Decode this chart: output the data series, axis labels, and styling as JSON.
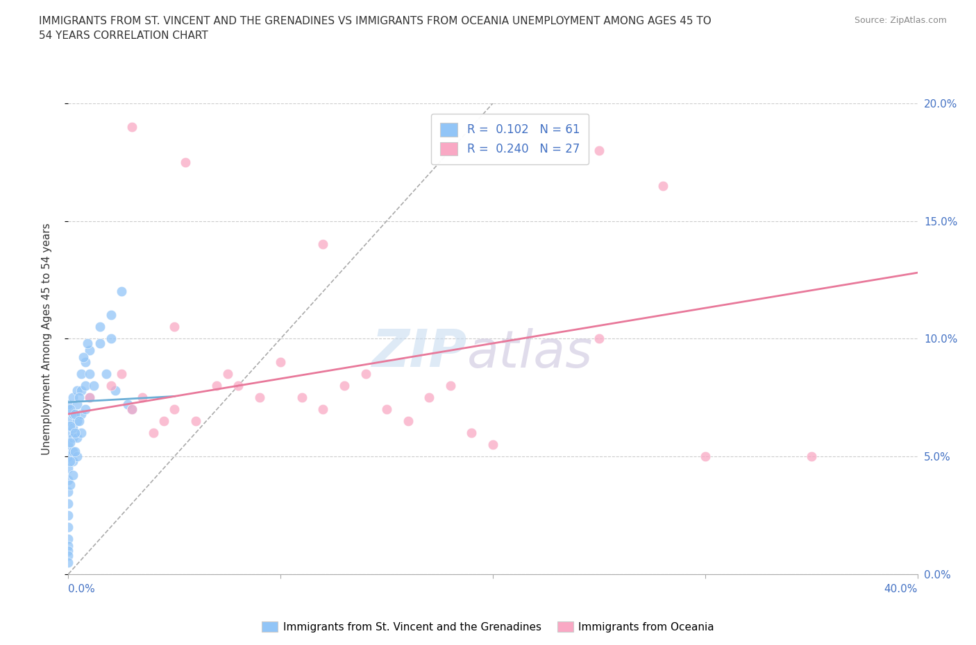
{
  "title": "IMMIGRANTS FROM ST. VINCENT AND THE GRENADINES VS IMMIGRANTS FROM OCEANIA UNEMPLOYMENT AMONG AGES 45 TO\n54 YEARS CORRELATION CHART",
  "source": "Source: ZipAtlas.com",
  "ylabel": "Unemployment Among Ages 45 to 54 years",
  "yticks": [
    "0.0%",
    "5.0%",
    "10.0%",
    "15.0%",
    "20.0%"
  ],
  "ytick_vals": [
    0.0,
    5.0,
    10.0,
    15.0,
    20.0
  ],
  "xrange": [
    0.0,
    40.0
  ],
  "yrange": [
    0.0,
    20.0
  ],
  "r_blue": 0.102,
  "n_blue": 61,
  "r_pink": 0.24,
  "n_pink": 27,
  "blue_color": "#92C5F7",
  "pink_color": "#F9A8C4",
  "trend_pink_color": "#E8789A",
  "trend_blue_color": "#6BAED6",
  "legend_blue_label": "Immigrants from St. Vincent and the Grenadines",
  "legend_pink_label": "Immigrants from Oceania",
  "blue_scatter_x": [
    0.0,
    0.0,
    0.0,
    0.0,
    0.0,
    0.0,
    0.0,
    0.0,
    0.0,
    0.0,
    0.0,
    0.0,
    0.2,
    0.2,
    0.2,
    0.2,
    0.2,
    0.2,
    0.2,
    0.4,
    0.4,
    0.4,
    0.4,
    0.4,
    0.6,
    0.6,
    0.6,
    0.6,
    0.8,
    0.8,
    0.8,
    1.0,
    1.0,
    1.0,
    1.5,
    1.5,
    2.0,
    2.0,
    2.5,
    0.1,
    0.1,
    0.1,
    0.1,
    0.1,
    0.3,
    0.3,
    0.3,
    0.5,
    0.5,
    0.7,
    0.9,
    1.2,
    1.8,
    2.2,
    2.8,
    3.0,
    0.0,
    0.0,
    0.0,
    0.0,
    0.0
  ],
  "blue_scatter_y": [
    6.5,
    7.0,
    7.2,
    6.0,
    5.5,
    5.0,
    4.5,
    4.0,
    3.5,
    3.0,
    2.5,
    2.0,
    7.5,
    6.8,
    6.2,
    5.8,
    5.2,
    4.8,
    4.2,
    7.8,
    7.2,
    6.5,
    5.8,
    5.0,
    8.5,
    7.8,
    6.8,
    6.0,
    9.0,
    8.0,
    7.0,
    9.5,
    8.5,
    7.5,
    10.5,
    9.8,
    11.0,
    10.0,
    12.0,
    7.0,
    6.3,
    5.6,
    4.8,
    3.8,
    6.8,
    6.0,
    5.2,
    7.5,
    6.5,
    9.2,
    9.8,
    8.0,
    8.5,
    7.8,
    7.2,
    7.0,
    1.5,
    1.2,
    1.0,
    0.8,
    0.5
  ],
  "pink_scatter_x": [
    1.0,
    2.0,
    2.5,
    3.0,
    3.5,
    4.0,
    4.5,
    5.0,
    6.0,
    7.0,
    7.5,
    8.0,
    9.0,
    10.0,
    11.0,
    12.0,
    13.0,
    14.0,
    15.0,
    16.0,
    17.0,
    18.0,
    19.0,
    20.0,
    25.0,
    30.0,
    35.0
  ],
  "pink_scatter_y": [
    7.5,
    8.0,
    8.5,
    7.0,
    7.5,
    6.0,
    6.5,
    7.0,
    6.5,
    8.0,
    8.5,
    8.0,
    7.5,
    9.0,
    7.5,
    7.0,
    8.0,
    8.5,
    7.0,
    6.5,
    7.5,
    8.0,
    6.0,
    5.5,
    10.0,
    5.0,
    5.0
  ],
  "extra_pink_x": [
    3.0,
    5.5,
    12.0,
    25.0,
    28.0,
    5.0
  ],
  "extra_pink_y": [
    19.0,
    17.5,
    14.0,
    18.0,
    16.5,
    10.5
  ]
}
